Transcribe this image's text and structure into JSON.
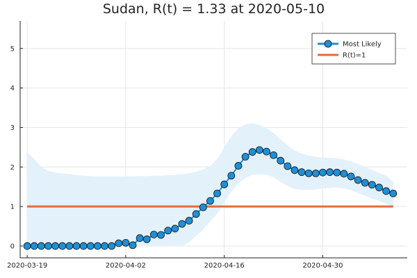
{
  "chart_data": {
    "type": "line",
    "title": "Sudan, R(t) = 1.33 at 2020-05-10",
    "xlabel": "",
    "ylabel": "",
    "x_start": "2020-03-19",
    "x_end": "2020-05-10",
    "xlim": [
      "2020-03-18",
      "2020-05-12"
    ],
    "ylim": [
      -0.3,
      5.7
    ],
    "x_ticks": [
      {
        "date": "2020-03-19",
        "label": "2020-03-19"
      },
      {
        "date": "2020-04-02",
        "label": "2020-04-02"
      },
      {
        "date": "2020-04-16",
        "label": "2020-04-16"
      },
      {
        "date": "2020-04-30",
        "label": "2020-04-30"
      }
    ],
    "y_ticks": [
      0,
      1,
      2,
      3,
      4,
      5
    ],
    "grid": true,
    "legend_position": "top-right",
    "series": [
      {
        "name": "Most Likely",
        "color": "#1f8fd6",
        "marker": "circle",
        "values": [
          0,
          0,
          0,
          0,
          0,
          0,
          0,
          0,
          0,
          0,
          0,
          0,
          0,
          0.07,
          0.08,
          0.02,
          0.2,
          0.17,
          0.29,
          0.28,
          0.39,
          0.44,
          0.56,
          0.64,
          0.81,
          0.98,
          1.14,
          1.33,
          1.56,
          1.78,
          2.03,
          2.26,
          2.38,
          2.43,
          2.39,
          2.3,
          2.16,
          2.02,
          1.92,
          1.87,
          1.84,
          1.84,
          1.86,
          1.87,
          1.86,
          1.83,
          1.76,
          1.67,
          1.6,
          1.55,
          1.48,
          1.39,
          1.33
        ]
      },
      {
        "name": "R(t)=1",
        "color": "#e26c3f",
        "values_constant": 1
      }
    ],
    "band": {
      "color": "#e3f1fb",
      "x_start": "2020-03-19",
      "upper": [
        2.37,
        2.2,
        2.0,
        1.9,
        1.86,
        1.84,
        1.82,
        1.8,
        1.78,
        1.77,
        1.76,
        1.76,
        1.76,
        1.76,
        1.76,
        1.77,
        1.77,
        1.77,
        1.78,
        1.78,
        1.79,
        1.8,
        1.82,
        1.84,
        1.88,
        1.94,
        2.02,
        2.2,
        2.5,
        2.78,
        2.98,
        3.08,
        3.1,
        3.06,
        2.98,
        2.86,
        2.7,
        2.55,
        2.42,
        2.34,
        2.29,
        2.26,
        2.24,
        2.23,
        2.22,
        2.19,
        2.14,
        2.07,
        2.0,
        1.92,
        1.85,
        1.78,
        1.62
      ],
      "lower": [
        0,
        0,
        0,
        0,
        0,
        0,
        0,
        0,
        0,
        0,
        0,
        0,
        0,
        0,
        0,
        0,
        0,
        0,
        0,
        0,
        0,
        0,
        0,
        0.1,
        0.25,
        0.42,
        0.62,
        0.82,
        1.1,
        1.38,
        1.58,
        1.72,
        1.8,
        1.82,
        1.8,
        1.74,
        1.62,
        1.52,
        1.44,
        1.42,
        1.42,
        1.43,
        1.45,
        1.47,
        1.48,
        1.46,
        1.42,
        1.34,
        1.27,
        1.2,
        1.14,
        1.07,
        1.0
      ]
    }
  }
}
